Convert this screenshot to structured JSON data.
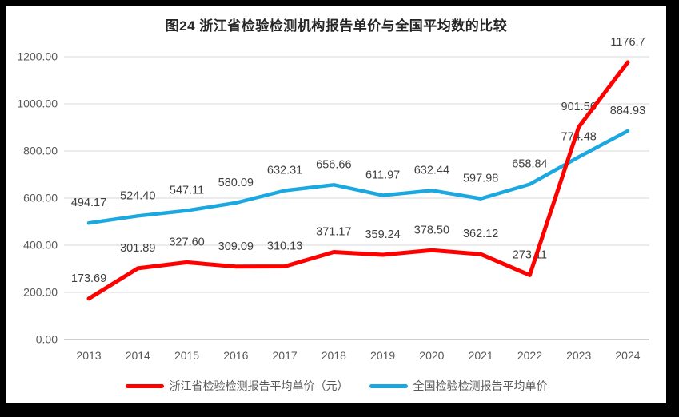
{
  "window": {
    "background_color": "#000000",
    "panel_color": "#FFFFFF"
  },
  "chart_data": {
    "type": "line",
    "title": "图24  浙江省检验检测机构报告单价与全国平均数的比较",
    "categories": [
      "2013",
      "2014",
      "2015",
      "2016",
      "2017",
      "2018",
      "2019",
      "2020",
      "2021",
      "2022",
      "2023",
      "2024"
    ],
    "series": [
      {
        "name": "浙江省检验检测报告平均单价（元）",
        "color": "#FF0000",
        "values": [
          173.69,
          301.89,
          327.6,
          309.09,
          310.13,
          371.17,
          359.24,
          378.5,
          362.12,
          273.11,
          901.56,
          1176.7
        ],
        "point_labels": [
          "173.69",
          "301.89",
          "327.60",
          "309.09",
          "310.13",
          "371.17",
          "359.24",
          "378.50",
          "362.12",
          "273.11",
          "901.56",
          "1176.7"
        ]
      },
      {
        "name": "全国检验检测报告平均单价",
        "color": "#1BA7E0",
        "values": [
          494.17,
          524.4,
          547.11,
          580.09,
          632.31,
          656.66,
          611.97,
          632.44,
          597.98,
          658.84,
          774.48,
          884.93
        ],
        "point_labels": [
          "494.17",
          "524.40",
          "547.11",
          "580.09",
          "632.31",
          "656.66",
          "611.97",
          "632.44",
          "597.98",
          "658.84",
          "774.48",
          "884.93"
        ]
      }
    ],
    "ylim": [
      0,
      1200
    ],
    "ytick_step": 200,
    "ytick_labels": [
      "0.00",
      "200.00",
      "400.00",
      "600.00",
      "800.00",
      "1000.00",
      "1200.00"
    ],
    "grid": true,
    "legend_position": "bottom"
  }
}
